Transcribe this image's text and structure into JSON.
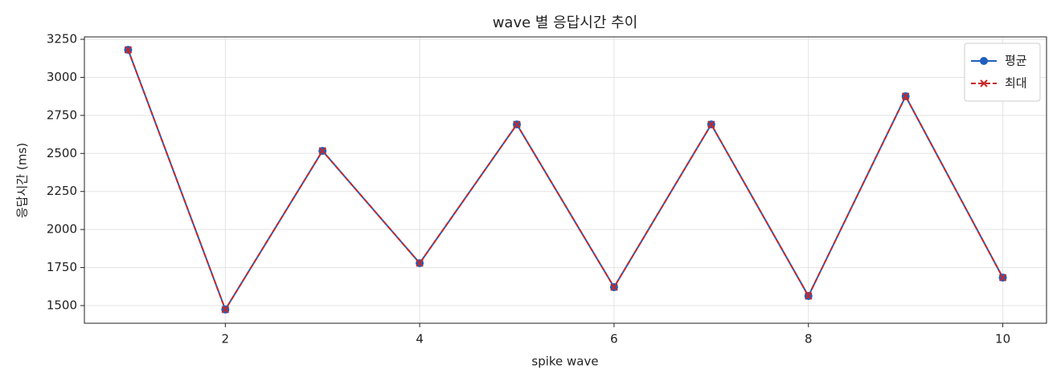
{
  "chart_data": {
    "type": "line",
    "title": "wave 별 응답시간 추이",
    "x_label": "spike wave",
    "y_label": "응답시간 (ms)",
    "x": [
      1,
      2,
      3,
      4,
      5,
      6,
      7,
      8,
      9,
      10
    ],
    "series": [
      {
        "name": "평균",
        "color": "#1f5fbf",
        "marker": "circle",
        "dash": false,
        "values": [
          3181,
          1474,
          2517,
          1779,
          2691,
          1621,
          2691,
          1563,
          2876,
          1684
        ]
      },
      {
        "name": "최대",
        "color": "#c62828",
        "marker": "x",
        "dash": true,
        "values": [
          3181,
          1474,
          2517,
          1779,
          2691,
          1621,
          2691,
          1563,
          2876,
          1684
        ]
      }
    ],
    "xlim": [
      0.55,
      10.45
    ],
    "ylim": [
      1384,
      3266
    ],
    "xticks": [
      2,
      4,
      6,
      8,
      10
    ],
    "yticks": [
      1500,
      1750,
      2000,
      2250,
      2500,
      2750,
      3000,
      3250
    ],
    "grid": true,
    "legend": "upper right"
  }
}
